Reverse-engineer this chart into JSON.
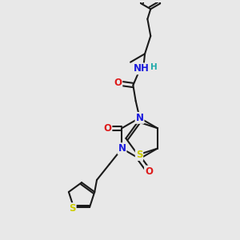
{
  "background_color": "#e8e8e8",
  "figure_size": [
    3.0,
    3.0
  ],
  "dpi": 100,
  "bond_color": "#1a1a1a",
  "bond_width": 1.5,
  "atom_colors": {
    "N": "#1a1add",
    "O": "#dd1a1a",
    "S": "#cccc00",
    "H": "#20aaaa",
    "C": "#1a1a1a"
  },
  "font_size_atoms": 8.5,
  "font_size_small": 7.5,
  "xlim": [
    0.05,
    0.95
  ],
  "ylim": [
    0.05,
    0.95
  ]
}
